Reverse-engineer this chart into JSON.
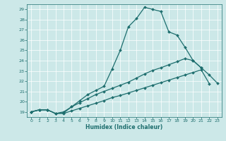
{
  "xlabel": "Humidex (Indice chaleur)",
  "bg_color": "#cce8e8",
  "line_color": "#1e6e6e",
  "grid_color": "#b8d8d8",
  "xlim": [
    -0.5,
    23.5
  ],
  "ylim": [
    18.5,
    29.5
  ],
  "xticks": [
    0,
    1,
    2,
    3,
    4,
    5,
    6,
    7,
    8,
    9,
    10,
    11,
    12,
    13,
    14,
    15,
    16,
    17,
    18,
    19,
    20,
    21,
    22,
    23
  ],
  "yticks": [
    19,
    20,
    21,
    22,
    23,
    24,
    25,
    26,
    27,
    28,
    29
  ],
  "line1_x": [
    0,
    1,
    2,
    3,
    4,
    5,
    6,
    7,
    8,
    9,
    10,
    11,
    12,
    13,
    14,
    15,
    16,
    17,
    18,
    19,
    20,
    21,
    22,
    23
  ],
  "line1_y": [
    19.0,
    19.2,
    19.2,
    18.85,
    18.85,
    19.1,
    19.35,
    19.6,
    19.85,
    20.1,
    20.4,
    20.6,
    20.85,
    21.1,
    21.35,
    21.6,
    21.85,
    22.1,
    22.35,
    22.6,
    22.85,
    23.1,
    21.75,
    null
  ],
  "line2_x": [
    0,
    1,
    2,
    3,
    4,
    5,
    6,
    7,
    8,
    9,
    10,
    11,
    12,
    13,
    14,
    15,
    16,
    17,
    18,
    19,
    20,
    21,
    22,
    23
  ],
  "line2_y": [
    19.0,
    19.2,
    19.2,
    18.85,
    18.9,
    19.5,
    20.1,
    20.7,
    21.1,
    21.5,
    23.2,
    25.0,
    27.3,
    28.1,
    29.2,
    29.0,
    28.8,
    26.8,
    26.5,
    25.3,
    24.0,
    23.3,
    null,
    null
  ],
  "line3_x": [
    0,
    1,
    2,
    3,
    4,
    5,
    6,
    7,
    8,
    9,
    10,
    11,
    12,
    13,
    14,
    15,
    16,
    17,
    18,
    19,
    20,
    21,
    22,
    23
  ],
  "line3_y": [
    19.0,
    19.2,
    19.2,
    18.85,
    19.0,
    19.5,
    19.9,
    20.3,
    20.7,
    21.0,
    21.3,
    21.6,
    21.9,
    22.3,
    22.7,
    23.05,
    23.3,
    23.6,
    23.9,
    24.2,
    24.0,
    23.3,
    22.6,
    21.8
  ]
}
